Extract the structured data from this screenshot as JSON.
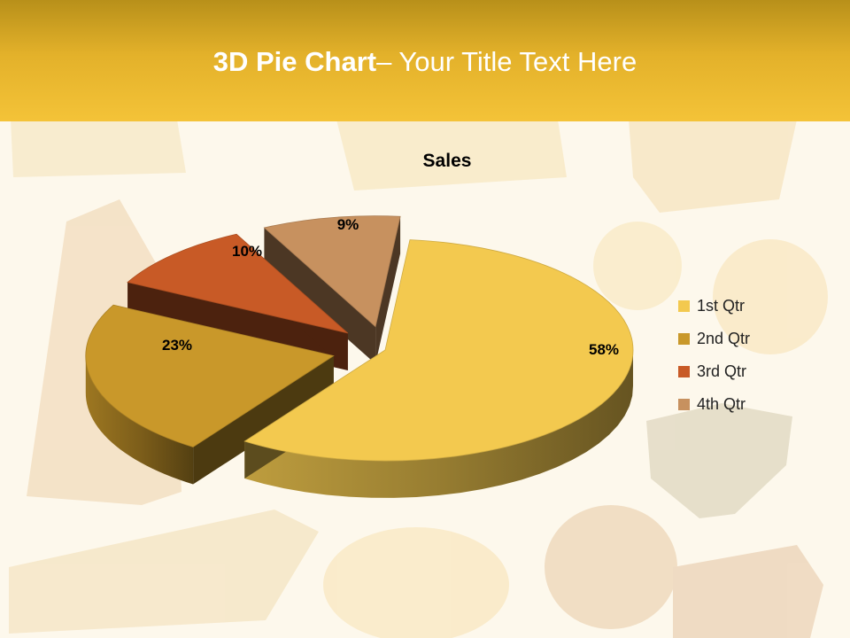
{
  "slide": {
    "title_bold": "3D Pie Chart",
    "title_rest": "– Your Title Text Here"
  },
  "chart_data": {
    "type": "pie",
    "title": "Sales",
    "categories": [
      "1st Qtr",
      "2nd Qtr",
      "3rd Qtr",
      "4th Qtr"
    ],
    "values": [
      58,
      23,
      10,
      9
    ],
    "labels": [
      "58%",
      "23%",
      "10%",
      "9%"
    ],
    "colors": [
      "#f3c94f",
      "#c9982a",
      "#c85a26",
      "#c7915f"
    ],
    "legend_position": "right",
    "exploded": true,
    "three_d": true
  }
}
